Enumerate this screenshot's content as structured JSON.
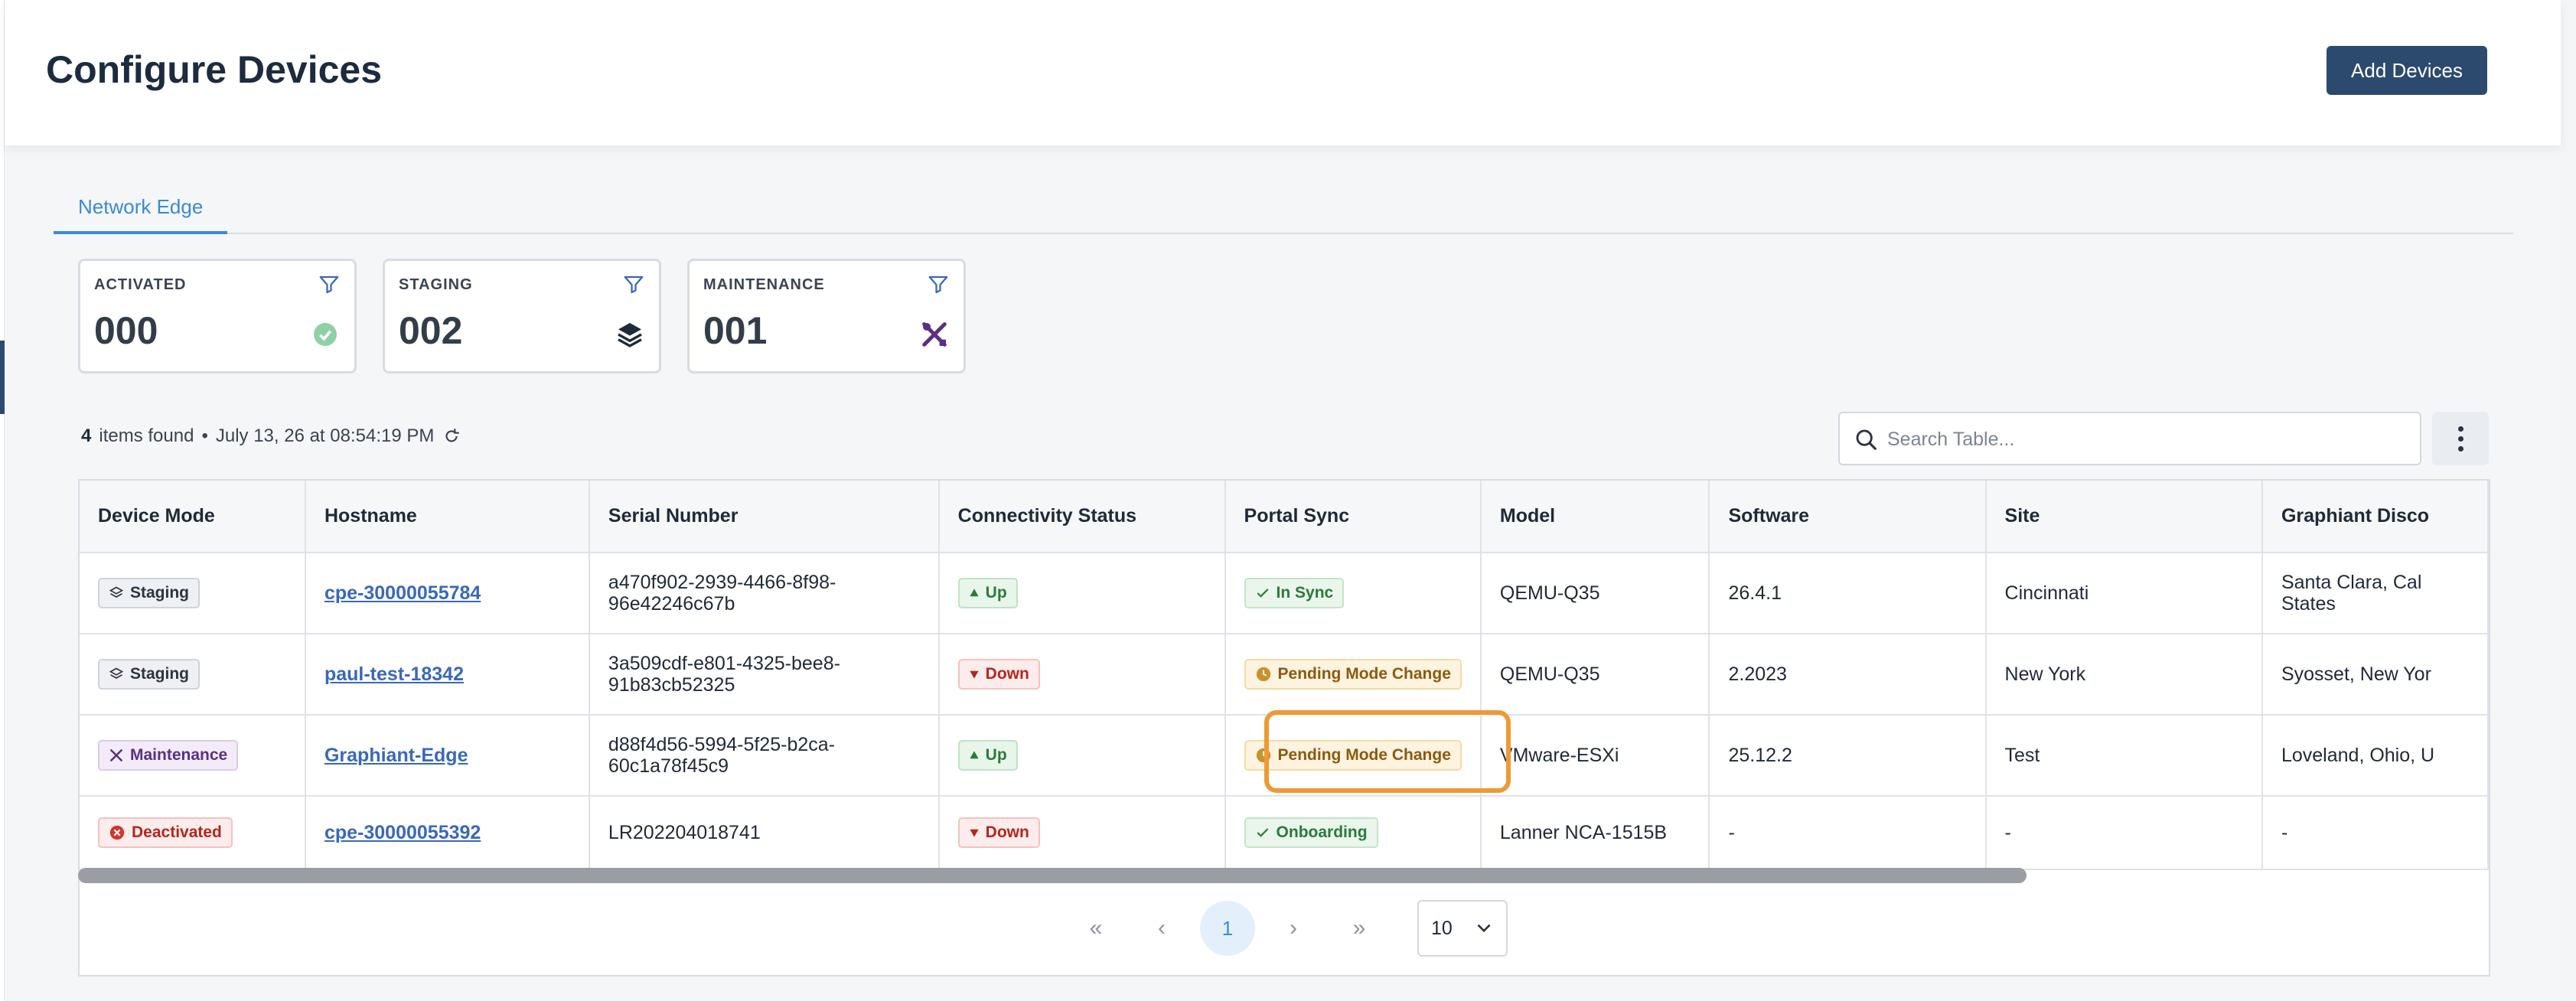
{
  "header": {
    "title": "Configure Devices",
    "add_button": "Add Devices"
  },
  "tabs": [
    {
      "label": "Network Edge",
      "active": true
    }
  ],
  "summary_cards": [
    {
      "label": "ACTIVATED",
      "count": "000",
      "icon": "check-circle-icon",
      "color": "#7fc89a"
    },
    {
      "label": "STAGING",
      "count": "002",
      "icon": "layers-icon",
      "color": "#1f2a37"
    },
    {
      "label": "MAINTENANCE",
      "count": "001",
      "icon": "tools-icon",
      "color": "#5a2f84"
    }
  ],
  "results": {
    "count": "4",
    "label": "items found",
    "separator": "•",
    "timestamp": "July 13, 26 at 08:54:19 PM"
  },
  "search": {
    "placeholder": "Search Table..."
  },
  "table": {
    "columns": [
      "Device Mode",
      "Hostname",
      "Serial Number",
      "Connectivity Status",
      "Portal Sync",
      "Model",
      "Software",
      "Site",
      "Graphiant Disco"
    ],
    "rows": [
      {
        "mode": "Staging",
        "hostname": "cpe-30000055784",
        "serial": "a470f902-2939-4466-8f98-96e42246c67b",
        "connectivity": "Up",
        "sync": "In Sync",
        "model": "QEMU-Q35",
        "software": "26.4.1",
        "site": "Cincinnati",
        "location": "Santa Clara, Cal States"
      },
      {
        "mode": "Staging",
        "hostname": "paul-test-18342",
        "serial": "3a509cdf-e801-4325-bee8-91b83cb52325",
        "connectivity": "Down",
        "sync": "Pending Mode Change",
        "model": "QEMU-Q35",
        "software": "2.2023",
        "site": "New York",
        "location": "Syosset, New Yor"
      },
      {
        "mode": "Maintenance",
        "hostname": "Graphiant-Edge",
        "serial": "d88f4d56-5994-5f25-b2ca-60c1a78f45c9",
        "connectivity": "Up",
        "sync": "Pending Mode Change",
        "model": "VMware-ESXi",
        "software": "25.12.2",
        "site": "Test",
        "location": "Loveland, Ohio, U"
      },
      {
        "mode": "Deactivated",
        "hostname": "cpe-30000055392",
        "serial": "LR202204018741",
        "connectivity": "Down",
        "sync": "Onboarding",
        "model": "Lanner NCA-1515B",
        "software": "-",
        "site": "-",
        "location": "-"
      }
    ]
  },
  "pagination": {
    "first": "«",
    "prev": "‹",
    "current": "1",
    "next": "›",
    "last": "»",
    "page_size": "10"
  },
  "colors": {
    "accent": "#3a8ad6",
    "brand": "#2c4a6e",
    "highlight": "#ee9a33"
  }
}
